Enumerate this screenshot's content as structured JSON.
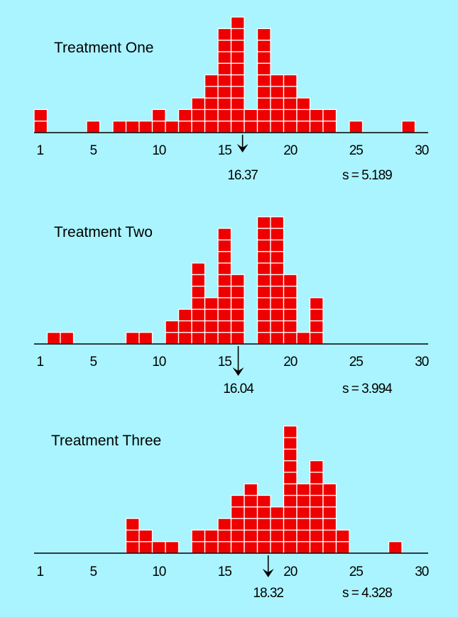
{
  "colors": {
    "background": "#aaf4ff",
    "bar": "#ee0000",
    "cell_border": "#ffffff",
    "axis": "#000000"
  },
  "chart_data": [
    {
      "type": "bar",
      "title": "Treatment One",
      "x_ticks": [
        1,
        5,
        10,
        15,
        20,
        25,
        30
      ],
      "xlim": [
        0.5,
        30.5
      ],
      "bins": [
        1,
        2,
        3,
        4,
        5,
        6,
        7,
        8,
        9,
        10,
        11,
        12,
        13,
        14,
        15,
        16,
        17,
        18,
        19,
        20,
        21,
        22,
        23,
        24,
        25,
        26,
        27,
        28,
        29,
        30
      ],
      "counts": [
        2,
        0,
        0,
        0,
        1,
        0,
        1,
        1,
        1,
        2,
        1,
        2,
        3,
        5,
        9,
        10,
        2,
        9,
        5,
        5,
        3,
        2,
        2,
        0,
        1,
        0,
        0,
        0,
        1,
        0
      ],
      "mean": 16.37,
      "mean_label": "16.37",
      "sd_label": "s = 5.189",
      "grid": false
    },
    {
      "type": "bar",
      "title": "Treatment Two",
      "x_ticks": [
        1,
        5,
        10,
        15,
        20,
        25,
        30
      ],
      "xlim": [
        0.5,
        30.5
      ],
      "bins": [
        1,
        2,
        3,
        4,
        5,
        6,
        7,
        8,
        9,
        10,
        11,
        12,
        13,
        14,
        15,
        16,
        17,
        18,
        19,
        20,
        21,
        22,
        23,
        24,
        25,
        26,
        27,
        28,
        29,
        30
      ],
      "counts": [
        0,
        1,
        1,
        0,
        0,
        0,
        0,
        1,
        1,
        0,
        2,
        3,
        7,
        4,
        10,
        6,
        0,
        11,
        11,
        6,
        1,
        4,
        0,
        0,
        0,
        0,
        0,
        0,
        0,
        0
      ],
      "mean": 16.04,
      "mean_label": "16.04",
      "sd_label": "s = 3.994",
      "grid": false
    },
    {
      "type": "bar",
      "title": "Treatment Three",
      "x_ticks": [
        1,
        5,
        10,
        15,
        20,
        25,
        30
      ],
      "xlim": [
        0.5,
        30.5
      ],
      "bins": [
        1,
        2,
        3,
        4,
        5,
        6,
        7,
        8,
        9,
        10,
        11,
        12,
        13,
        14,
        15,
        16,
        17,
        18,
        19,
        20,
        21,
        22,
        23,
        24,
        25,
        26,
        27,
        28,
        29,
        30
      ],
      "counts": [
        0,
        0,
        0,
        0,
        0,
        0,
        0,
        3,
        2,
        1,
        1,
        0,
        2,
        2,
        3,
        5,
        6,
        5,
        4,
        11,
        6,
        8,
        6,
        2,
        0,
        0,
        0,
        1,
        0,
        0
      ],
      "mean": 18.32,
      "mean_label": "18.32",
      "sd_label": "s = 4.328",
      "grid": false
    }
  ]
}
